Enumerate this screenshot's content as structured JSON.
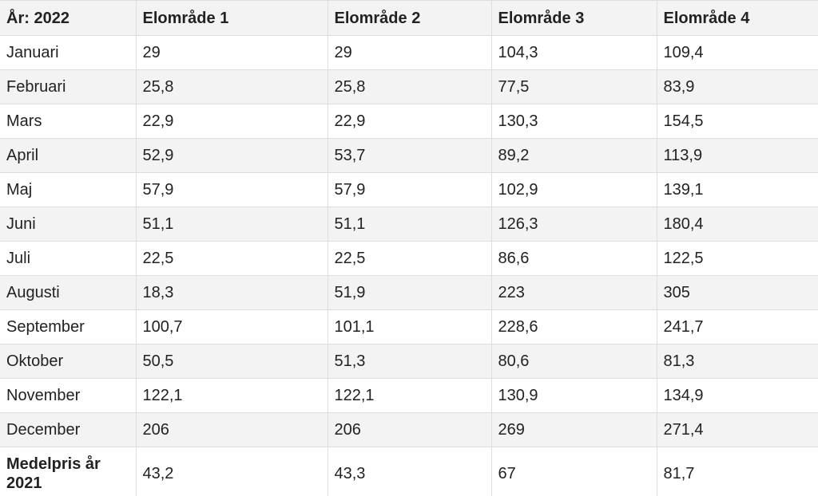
{
  "table": {
    "header": [
      "År: 2022",
      "Elområde 1",
      "Elområde 2",
      "Elområde 3",
      "Elområde 4"
    ],
    "rows": [
      [
        "Januari",
        "29",
        "29",
        "104,3",
        "109,4"
      ],
      [
        "Februari",
        "25,8",
        "25,8",
        "77,5",
        "83,9"
      ],
      [
        "Mars",
        "22,9",
        "22,9",
        "130,3",
        "154,5"
      ],
      [
        "April",
        "52,9",
        "53,7",
        "89,2",
        "113,9"
      ],
      [
        "Maj",
        "57,9",
        "57,9",
        "102,9",
        "139,1"
      ],
      [
        "Juni",
        "51,1",
        "51,1",
        "126,3",
        "180,4"
      ],
      [
        "Juli",
        "22,5",
        "22,5",
        "86,6",
        "122,5"
      ],
      [
        "Augusti",
        "18,3",
        "51,9",
        "223",
        "305"
      ],
      [
        "September",
        "100,7",
        "101,1",
        "228,6",
        "241,7"
      ],
      [
        "Oktober",
        "50,5",
        "51,3",
        "80,6",
        "81,3"
      ],
      [
        "November",
        "122,1",
        "122,1",
        "130,9",
        "134,9"
      ],
      [
        "December",
        "206",
        "206",
        "269",
        "271,4"
      ],
      [
        "Medelpris år 2021",
        "43,2",
        "43,3",
        "67",
        "81,7"
      ]
    ]
  }
}
